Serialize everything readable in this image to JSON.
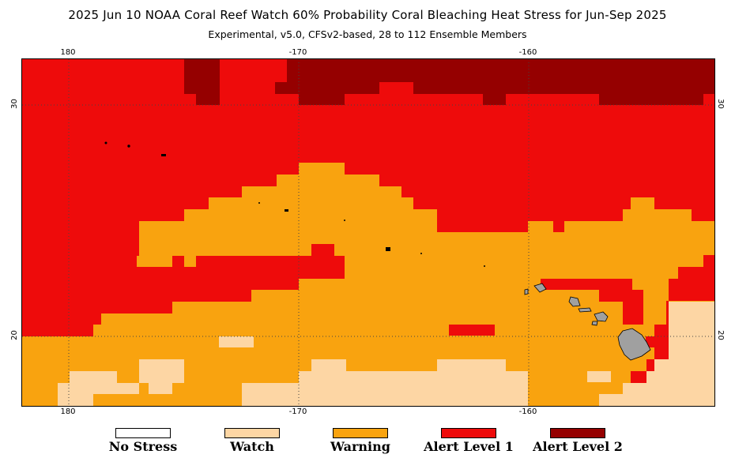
{
  "header": {
    "title": "2025 Jun 10 NOAA Coral Reef Watch 60% Probability Coral Bleaching Heat Stress for Jun-Sep 2025",
    "subtitle": "Experimental, v5.0, CFSv2-based, 28 to 112 Ensemble Members"
  },
  "axes": {
    "lon_labels": [
      "180",
      "-170",
      "-160"
    ],
    "lat_labels": [
      "30",
      "20"
    ]
  },
  "legend": [
    {
      "label": "No Stress",
      "color": "#ffffff"
    },
    {
      "label": "Watch",
      "color": "#fdd6a4"
    },
    {
      "label": "Warning",
      "color": "#f9a30f"
    },
    {
      "label": "Alert Level 1",
      "color": "#ee0b0b"
    },
    {
      "label": "Alert Level 2",
      "color": "#950000"
    }
  ],
  "map_colors": {
    "alert2": "#950000",
    "alert1": "#ee0b0b",
    "warning": "#f9a30f",
    "watch": "#fdd6a4",
    "land": "#a0a0a0"
  }
}
